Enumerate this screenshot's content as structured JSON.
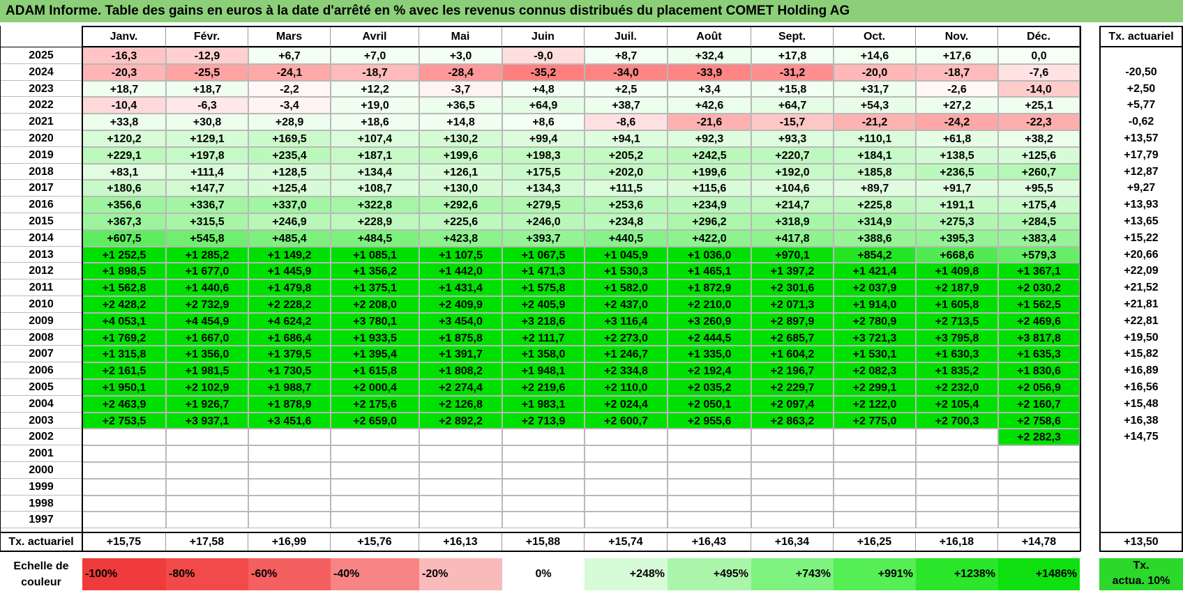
{
  "title": "ADAM Informe. Table des gains en euros à la date d'arrêté en % avec les revenus connus distribués du placement COMET Holding AG",
  "months": [
    "Janv.",
    "Févr.",
    "Mars",
    "Avril",
    "Mai",
    "Juin",
    "Juil.",
    "Août",
    "Sept.",
    "Oct.",
    "Nov.",
    "Déc."
  ],
  "annual_header": "Tx. actuariel",
  "rows": [
    {
      "year": "2025",
      "values": [
        "-16,3",
        "-12,9",
        "+6,7",
        "+7,0",
        "+3,0",
        "-9,0",
        "+8,7",
        "+32,4",
        "+17,8",
        "+14,6",
        "+17,6",
        "0,0"
      ],
      "rate": ""
    },
    {
      "year": "2024",
      "values": [
        "-20,3",
        "-25,5",
        "-24,1",
        "-18,7",
        "-28,4",
        "-35,2",
        "-34,0",
        "-33,9",
        "-31,2",
        "-20,0",
        "-18,7",
        "-7,6"
      ],
      "rate": "-20,50"
    },
    {
      "year": "2023",
      "values": [
        "+18,7",
        "+18,7",
        "-2,2",
        "+12,2",
        "-3,7",
        "+4,8",
        "+2,5",
        "+3,4",
        "+15,8",
        "+31,7",
        "-2,6",
        "-14,0"
      ],
      "rate": "+2,50"
    },
    {
      "year": "2022",
      "values": [
        "-10,4",
        "-6,3",
        "-3,4",
        "+19,0",
        "+36,5",
        "+64,9",
        "+38,7",
        "+42,6",
        "+64,7",
        "+54,3",
        "+27,2",
        "+25,1"
      ],
      "rate": "+5,77"
    },
    {
      "year": "2021",
      "values": [
        "+33,8",
        "+30,8",
        "+28,9",
        "+18,6",
        "+14,8",
        "+8,6",
        "-8,6",
        "-21,6",
        "-15,7",
        "-21,2",
        "-24,2",
        "-22,3"
      ],
      "rate": "-0,62"
    },
    {
      "year": "2020",
      "values": [
        "+120,2",
        "+129,1",
        "+169,5",
        "+107,4",
        "+130,2",
        "+99,4",
        "+94,1",
        "+92,3",
        "+93,3",
        "+110,1",
        "+61,8",
        "+38,2"
      ],
      "rate": "+13,57"
    },
    {
      "year": "2019",
      "values": [
        "+229,1",
        "+197,8",
        "+235,4",
        "+187,1",
        "+199,6",
        "+198,3",
        "+205,2",
        "+242,5",
        "+220,7",
        "+184,1",
        "+138,5",
        "+125,6"
      ],
      "rate": "+17,79"
    },
    {
      "year": "2018",
      "values": [
        "+83,1",
        "+111,4",
        "+128,5",
        "+134,4",
        "+126,1",
        "+175,5",
        "+202,0",
        "+199,6",
        "+192,0",
        "+185,8",
        "+236,5",
        "+260,7"
      ],
      "rate": "+12,87"
    },
    {
      "year": "2017",
      "values": [
        "+180,6",
        "+147,7",
        "+125,4",
        "+108,7",
        "+130,0",
        "+134,3",
        "+111,5",
        "+115,6",
        "+104,6",
        "+89,7",
        "+91,7",
        "+95,5"
      ],
      "rate": "+9,27"
    },
    {
      "year": "2016",
      "values": [
        "+356,6",
        "+336,7",
        "+337,0",
        "+322,8",
        "+292,6",
        "+279,5",
        "+253,6",
        "+234,9",
        "+214,7",
        "+225,8",
        "+191,1",
        "+175,4"
      ],
      "rate": "+13,93"
    },
    {
      "year": "2015",
      "values": [
        "+367,3",
        "+315,5",
        "+246,9",
        "+228,9",
        "+225,6",
        "+246,0",
        "+234,8",
        "+296,2",
        "+318,9",
        "+314,9",
        "+275,3",
        "+284,5"
      ],
      "rate": "+13,65"
    },
    {
      "year": "2014",
      "values": [
        "+607,5",
        "+545,8",
        "+485,4",
        "+484,5",
        "+423,8",
        "+393,7",
        "+440,5",
        "+422,0",
        "+417,8",
        "+388,6",
        "+395,3",
        "+383,4"
      ],
      "rate": "+15,22"
    },
    {
      "year": "2013",
      "values": [
        "+1 252,5",
        "+1 285,2",
        "+1 149,2",
        "+1 085,1",
        "+1 107,5",
        "+1 067,5",
        "+1 045,9",
        "+1 036,0",
        "+970,1",
        "+854,2",
        "+668,6",
        "+579,3"
      ],
      "rate": "+20,66"
    },
    {
      "year": "2012",
      "values": [
        "+1 898,5",
        "+1 677,0",
        "+1 445,9",
        "+1 356,2",
        "+1 442,0",
        "+1 471,3",
        "+1 530,3",
        "+1 465,1",
        "+1 397,2",
        "+1 421,4",
        "+1 409,8",
        "+1 367,1"
      ],
      "rate": "+22,09"
    },
    {
      "year": "2011",
      "values": [
        "+1 562,8",
        "+1 440,6",
        "+1 479,8",
        "+1 375,1",
        "+1 431,4",
        "+1 575,8",
        "+1 582,0",
        "+1 872,9",
        "+2 301,6",
        "+2 037,9",
        "+2 187,9",
        "+2 030,2"
      ],
      "rate": "+21,52"
    },
    {
      "year": "2010",
      "values": [
        "+2 428,2",
        "+2 732,9",
        "+2 228,2",
        "+2 208,0",
        "+2 409,9",
        "+2 405,9",
        "+2 437,0",
        "+2 210,0",
        "+2 071,3",
        "+1 914,0",
        "+1 605,8",
        "+1 562,5"
      ],
      "rate": "+21,81"
    },
    {
      "year": "2009",
      "values": [
        "+4 053,1",
        "+4 454,9",
        "+4 624,2",
        "+3 780,1",
        "+3 454,0",
        "+3 218,6",
        "+3 116,4",
        "+3 260,9",
        "+2 897,9",
        "+2 780,9",
        "+2 713,5",
        "+2 469,6"
      ],
      "rate": "+22,81"
    },
    {
      "year": "2008",
      "values": [
        "+1 769,2",
        "+1 667,0",
        "+1 686,4",
        "+1 933,5",
        "+1 875,8",
        "+2 111,7",
        "+2 273,0",
        "+2 444,5",
        "+2 685,7",
        "+3 721,3",
        "+3 795,8",
        "+3 817,8"
      ],
      "rate": "+19,50"
    },
    {
      "year": "2007",
      "values": [
        "+1 315,8",
        "+1 356,0",
        "+1 379,5",
        "+1 395,4",
        "+1 391,7",
        "+1 358,0",
        "+1 246,7",
        "+1 335,0",
        "+1 604,2",
        "+1 530,1",
        "+1 630,3",
        "+1 635,3"
      ],
      "rate": "+15,82"
    },
    {
      "year": "2006",
      "values": [
        "+2 161,5",
        "+1 981,5",
        "+1 730,5",
        "+1 615,8",
        "+1 808,2",
        "+1 948,1",
        "+2 334,8",
        "+2 192,4",
        "+2 196,7",
        "+2 082,3",
        "+1 835,2",
        "+1 830,6"
      ],
      "rate": "+16,89"
    },
    {
      "year": "2005",
      "values": [
        "+1 950,1",
        "+2 102,9",
        "+1 988,7",
        "+2 000,4",
        "+2 274,4",
        "+2 219,6",
        "+2 110,0",
        "+2 035,2",
        "+2 229,7",
        "+2 299,1",
        "+2 232,0",
        "+2 056,9"
      ],
      "rate": "+16,56"
    },
    {
      "year": "2004",
      "values": [
        "+2 463,9",
        "+1 926,7",
        "+1 878,9",
        "+2 175,6",
        "+2 126,8",
        "+1 983,1",
        "+2 024,4",
        "+2 050,1",
        "+2 097,4",
        "+2 122,0",
        "+2 105,4",
        "+2 160,7"
      ],
      "rate": "+15,48"
    },
    {
      "year": "2003",
      "values": [
        "+2 753,5",
        "+3 937,1",
        "+3 451,6",
        "+2 659,0",
        "+2 892,2",
        "+2 713,9",
        "+2 600,7",
        "+2 955,6",
        "+2 863,2",
        "+2 775,0",
        "+2 700,3",
        "+2 758,6"
      ],
      "rate": "+16,38"
    },
    {
      "year": "2002",
      "values": [
        "",
        "",
        "",
        "",
        "",
        "",
        "",
        "",
        "",
        "",
        "",
        "+2 282,3"
      ],
      "rate": "+14,75"
    },
    {
      "year": "2001",
      "values": [
        "",
        "",
        "",
        "",
        "",
        "",
        "",
        "",
        "",
        "",
        "",
        ""
      ],
      "rate": ""
    },
    {
      "year": "2000",
      "values": [
        "",
        "",
        "",
        "",
        "",
        "",
        "",
        "",
        "",
        "",
        "",
        ""
      ],
      "rate": ""
    },
    {
      "year": "1999",
      "values": [
        "",
        "",
        "",
        "",
        "",
        "",
        "",
        "",
        "",
        "",
        "",
        ""
      ],
      "rate": ""
    },
    {
      "year": "1998",
      "values": [
        "",
        "",
        "",
        "",
        "",
        "",
        "",
        "",
        "",
        "",
        "",
        ""
      ],
      "rate": ""
    },
    {
      "year": "1997",
      "values": [
        "",
        "",
        "",
        "",
        "",
        "",
        "",
        "",
        "",
        "",
        "",
        ""
      ],
      "rate": ""
    }
  ],
  "footer": {
    "label": "Tx. actuariel",
    "values": [
      "+15,75",
      "+17,58",
      "+16,99",
      "+15,76",
      "+16,13",
      "+15,88",
      "+15,74",
      "+16,43",
      "+16,34",
      "+16,25",
      "+16,18",
      "+14,78"
    ],
    "total": "+13,50"
  },
  "scale": {
    "label_line1": "Echelle de",
    "label_line2": "couleur",
    "steps": [
      {
        "text": "-100%",
        "color": "#ef3b3b",
        "align": "left"
      },
      {
        "text": "-80%",
        "color": "#f24a4a",
        "align": "left"
      },
      {
        "text": "-60%",
        "color": "#f45f5f",
        "align": "left"
      },
      {
        "text": "-40%",
        "color": "#f78585",
        "align": "left"
      },
      {
        "text": "-20%",
        "color": "#fbbaba",
        "align": "left"
      },
      {
        "text": "0%",
        "color": "#ffffff",
        "align": "center"
      },
      {
        "text": "+248%",
        "color": "#d6fbd6",
        "align": "right"
      },
      {
        "text": "+495%",
        "color": "#a9f5a9",
        "align": "right"
      },
      {
        "text": "+743%",
        "color": "#7ef27e",
        "align": "right"
      },
      {
        "text": "+991%",
        "color": "#55ee55",
        "align": "right"
      },
      {
        "text": "+1238%",
        "color": "#2be62b",
        "align": "right"
      },
      {
        "text": "+1486%",
        "color": "#0fe00f",
        "align": "right"
      }
    ],
    "legend_line1": "Tx.",
    "legend_line2": "actua. 10%",
    "legend_color": "#2bd82b"
  },
  "colors": {
    "title_bg": "#8ccf79",
    "positive_strong": "#00e000",
    "negative_strong": "#f08080"
  }
}
